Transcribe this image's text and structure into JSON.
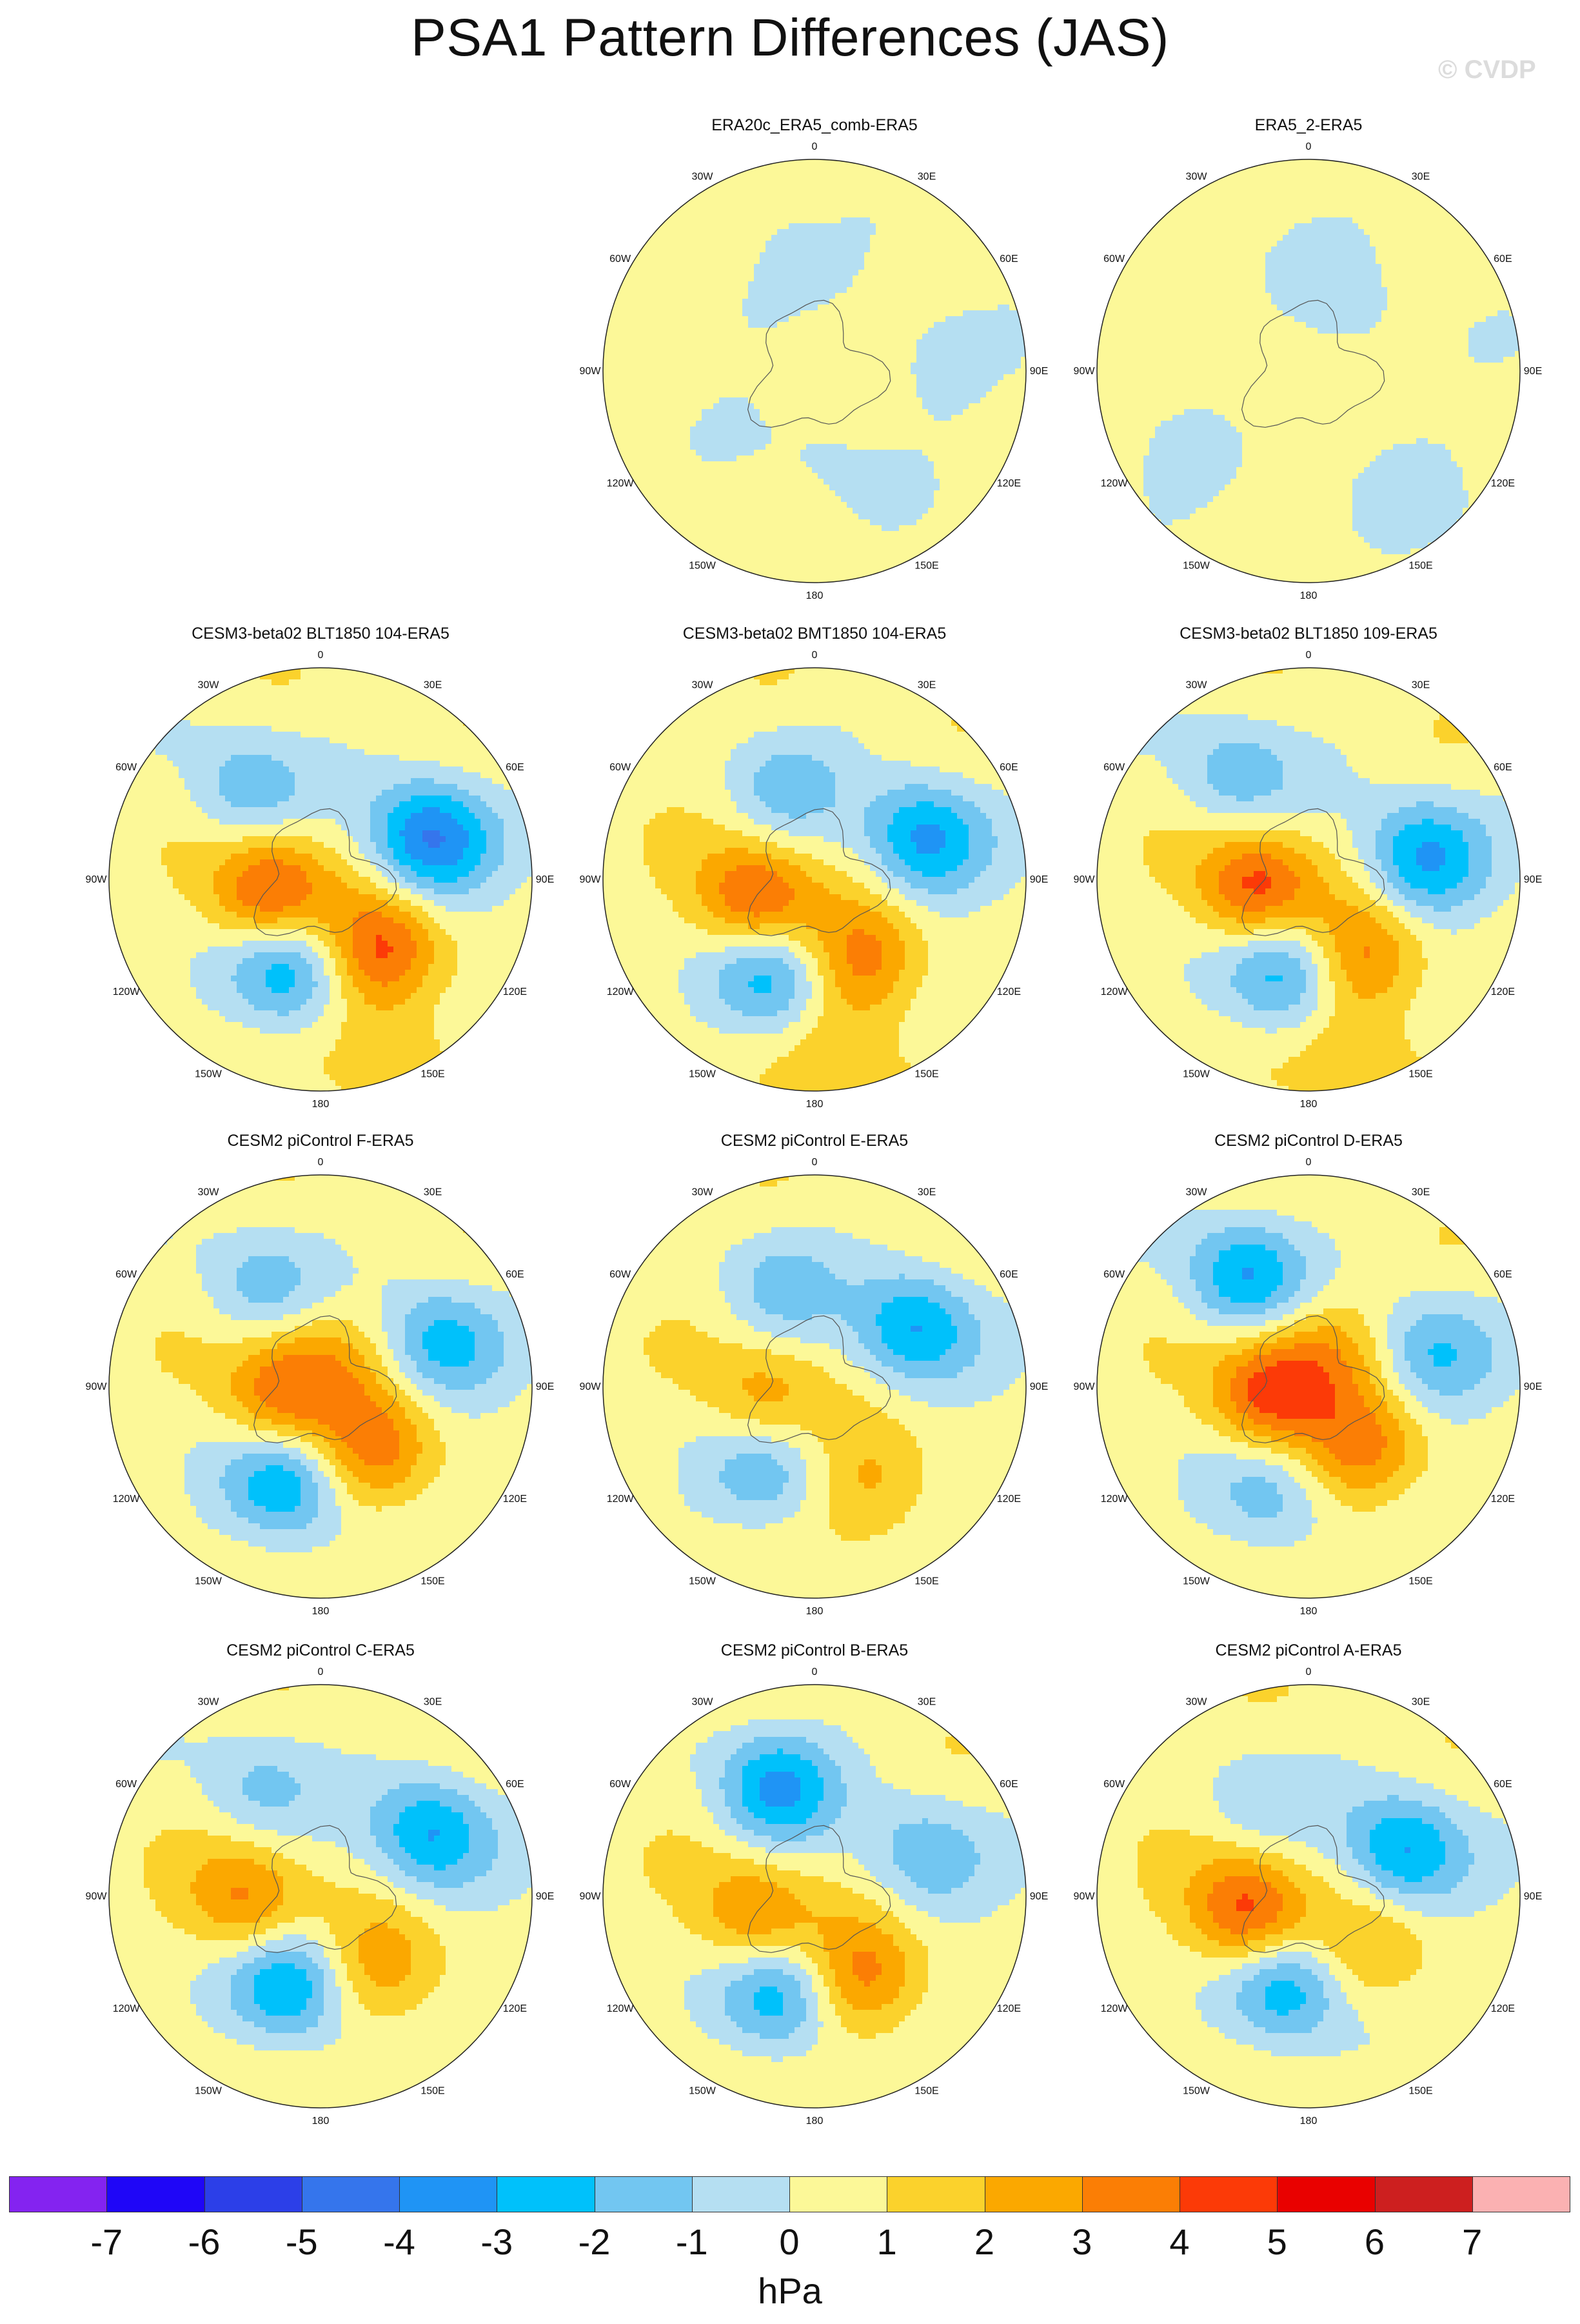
{
  "title": "PSA1 Pattern Differences (JAS)",
  "watermark": "© CVDP",
  "map": {
    "projection": "south-polar-stereographic",
    "lon_labels": [
      "0",
      "30E",
      "60E",
      "90E",
      "120E",
      "150E",
      "180",
      "150W",
      "120W",
      "90W",
      "60W",
      "30W"
    ]
  },
  "panels": [
    {
      "title": "ERA20c_ERA5_comb-ERA5",
      "row": 0,
      "col": 1,
      "min": -1,
      "max": 0,
      "centers": [
        {
          "lon": 90,
          "r": 0.55,
          "v": -0.8
        },
        {
          "lon": 170,
          "r": 0.4,
          "v": -0.7
        },
        {
          "lon": 300,
          "r": 0.5,
          "v": -0.6
        },
        {
          "lon": 345,
          "r": 0.85,
          "v": -0.6
        },
        {
          "lon": 30,
          "r": 0.85,
          "v": -0.5
        }
      ]
    },
    {
      "title": "ERA5_2-ERA5",
      "row": 0,
      "col": 2,
      "min": -1,
      "max": 0,
      "centers": [
        {
          "lon": 140,
          "r": 0.8,
          "v": -0.8
        },
        {
          "lon": 230,
          "r": 0.8,
          "v": -0.7
        },
        {
          "lon": 10,
          "r": 0.5,
          "v": -0.7
        },
        {
          "lon": 60,
          "r": 0.3,
          "v": -0.6
        },
        {
          "lon": 270,
          "r": 0.2,
          "v": 0.5
        }
      ]
    },
    {
      "title": "CESM3-beta02 BLT1850 104-ERA5",
      "row": 1,
      "col": 0,
      "min": -5,
      "max": 4,
      "centers": [
        {
          "lon": 255,
          "r": 0.25,
          "v": 4.3
        },
        {
          "lon": 140,
          "r": 0.45,
          "v": 3.8
        },
        {
          "lon": 70,
          "r": 0.55,
          "v": -4.7
        },
        {
          "lon": 200,
          "r": 0.45,
          "v": -3.6
        },
        {
          "lon": 320,
          "r": 0.55,
          "v": -2.3
        },
        {
          "lon": 160,
          "r": 0.9,
          "v": 1.3
        }
      ]
    },
    {
      "title": "CESM3-beta02 BMT1850 104-ERA5",
      "row": 1,
      "col": 1,
      "min": -4,
      "max": 4,
      "centers": [
        {
          "lon": 250,
          "r": 0.3,
          "v": 4.2
        },
        {
          "lon": 150,
          "r": 0.45,
          "v": 3.0
        },
        {
          "lon": 70,
          "r": 0.55,
          "v": -3.8
        },
        {
          "lon": 205,
          "r": 0.5,
          "v": -3.5
        },
        {
          "lon": 340,
          "r": 0.45,
          "v": -1.8
        },
        {
          "lon": 170,
          "r": 0.9,
          "v": 1.4
        }
      ]
    },
    {
      "title": "CESM3-beta02 BLT1850 109-ERA5",
      "row": 1,
      "col": 2,
      "min": -4,
      "max": 4,
      "centers": [
        {
          "lon": 260,
          "r": 0.25,
          "v": 4.2
        },
        {
          "lon": 145,
          "r": 0.45,
          "v": 3.0
        },
        {
          "lon": 80,
          "r": 0.55,
          "v": -3.8
        },
        {
          "lon": 195,
          "r": 0.45,
          "v": -3.4
        },
        {
          "lon": 325,
          "r": 0.6,
          "v": -2.2
        },
        {
          "lon": 165,
          "r": 0.9,
          "v": 1.5
        }
      ]
    },
    {
      "title": "CESM2 piControl F-ERA5",
      "row": 2,
      "col": 0,
      "min": -4,
      "max": 3,
      "centers": [
        {
          "lon": 260,
          "r": 0.2,
          "v": 3.2
        },
        {
          "lon": 140,
          "r": 0.4,
          "v": 3.0
        },
        {
          "lon": 200,
          "r": 0.5,
          "v": -3.6
        },
        {
          "lon": 70,
          "r": 0.6,
          "v": -3.0
        },
        {
          "lon": 330,
          "r": 0.55,
          "v": -2.0
        },
        {
          "lon": 20,
          "r": 0.15,
          "v": 1.6
        }
      ]
    },
    {
      "title": "CESM2 piControl E-ERA5",
      "row": 2,
      "col": 1,
      "min": -4,
      "max": 2,
      "centers": [
        {
          "lon": 255,
          "r": 0.25,
          "v": 2.4
        },
        {
          "lon": 150,
          "r": 0.55,
          "v": 1.9
        },
        {
          "lon": 60,
          "r": 0.55,
          "v": -3.6
        },
        {
          "lon": 210,
          "r": 0.45,
          "v": -2.4
        },
        {
          "lon": 340,
          "r": 0.5,
          "v": -1.8
        }
      ]
    },
    {
      "title": "CESM2 piControl D-ERA5",
      "row": 2,
      "col": 2,
      "min": -4,
      "max": 4,
      "centers": [
        {
          "lon": 260,
          "r": 0.2,
          "v": 4.0
        },
        {
          "lon": 140,
          "r": 0.4,
          "v": 2.8
        },
        {
          "lon": 330,
          "r": 0.6,
          "v": -3.6
        },
        {
          "lon": 75,
          "r": 0.6,
          "v": -2.6
        },
        {
          "lon": 200,
          "r": 0.55,
          "v": -2.2
        },
        {
          "lon": 30,
          "r": 0.2,
          "v": 2.0
        }
      ]
    },
    {
      "title": "CESM2 piControl C-ERA5",
      "row": 3,
      "col": 0,
      "min": -4,
      "max": 3,
      "centers": [
        {
          "lon": 265,
          "r": 0.35,
          "v": 3.0
        },
        {
          "lon": 140,
          "r": 0.45,
          "v": 2.2
        },
        {
          "lon": 200,
          "r": 0.45,
          "v": -3.7
        },
        {
          "lon": 60,
          "r": 0.6,
          "v": -3.6
        },
        {
          "lon": 330,
          "r": 0.6,
          "v": -1.7
        }
      ]
    },
    {
      "title": "CESM2 piControl B-ERA5",
      "row": 3,
      "col": 1,
      "min": -4,
      "max": 3,
      "centers": [
        {
          "lon": 250,
          "r": 0.3,
          "v": 3.0
        },
        {
          "lon": 150,
          "r": 0.45,
          "v": 3.0
        },
        {
          "lon": 340,
          "r": 0.55,
          "v": -3.6
        },
        {
          "lon": 200,
          "r": 0.5,
          "v": -3.5
        },
        {
          "lon": 70,
          "r": 0.55,
          "v": -2.3
        }
      ]
    },
    {
      "title": "CESM2 piControl A-ERA5",
      "row": 3,
      "col": 2,
      "min": -4,
      "max": 4,
      "centers": [
        {
          "lon": 255,
          "r": 0.3,
          "v": 4.3
        },
        {
          "lon": 65,
          "r": 0.5,
          "v": -3.7
        },
        {
          "lon": 195,
          "r": 0.45,
          "v": -3.5
        },
        {
          "lon": 130,
          "r": 0.4,
          "v": 1.6
        },
        {
          "lon": 330,
          "r": 0.5,
          "v": -1.2
        }
      ]
    }
  ],
  "colorbar": {
    "levels": [
      "-7",
      "-6",
      "-5",
      "-4",
      "-3",
      "-2",
      "-1",
      "0",
      "1",
      "2",
      "3",
      "4",
      "5",
      "6",
      "7"
    ],
    "colors": [
      "#8423f0",
      "#1f06f7",
      "#2c3fe8",
      "#3575ec",
      "#1f94f5",
      "#00c1fb",
      "#72c6f1",
      "#b5dff2",
      "#fcf898",
      "#fbd22c",
      "#fba800",
      "#fb7e05",
      "#fc3a07",
      "#e90100",
      "#cd1f1f",
      "#fbb1b2"
    ],
    "units": "hPa"
  }
}
